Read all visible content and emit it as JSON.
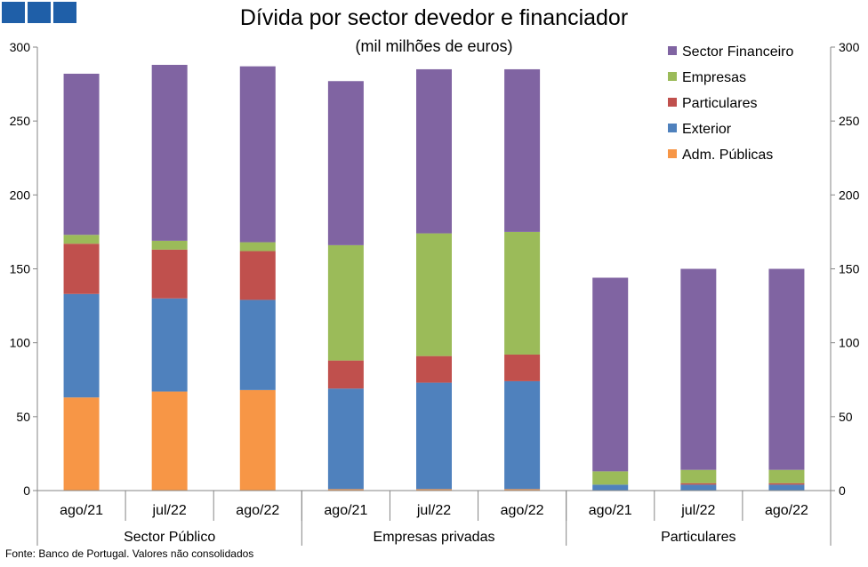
{
  "logo": {
    "icon": "bank-logo-icon",
    "color": "#1f5fa8"
  },
  "source_note": "Fonte: Banco de Portugal. Valores não consolidados",
  "chart_data": {
    "type": "bar",
    "stacked": true,
    "title": "Dívida por sector devedor e financiador",
    "subtitle": "(mil milhões de euros)",
    "xlabel": "",
    "ylabel": "",
    "ylim": [
      0,
      300
    ],
    "yticks": [
      0,
      50,
      100,
      150,
      200,
      250,
      300
    ],
    "secondary_yaxis": true,
    "grid": false,
    "legend_position": "top-right",
    "categories": [
      "ago/21",
      "jul/22",
      "ago/22",
      "ago/21",
      "jul/22",
      "ago/22",
      "ago/21",
      "jul/22",
      "ago/22"
    ],
    "groups": [
      {
        "label": "Sector Público",
        "count": 3
      },
      {
        "label": "Empresas privadas",
        "count": 3
      },
      {
        "label": "Particulares",
        "count": 3
      }
    ],
    "series": [
      {
        "name": "Adm. Públicas",
        "color": "#f79646",
        "values": [
          63,
          67,
          68,
          1,
          1,
          1,
          0,
          0,
          0
        ]
      },
      {
        "name": "Exterior",
        "color": "#4f81bd",
        "values": [
          70,
          63,
          61,
          68,
          72,
          73,
          4,
          4,
          4
        ]
      },
      {
        "name": "Particulares",
        "color": "#c0504d",
        "values": [
          34,
          33,
          33,
          19,
          18,
          18,
          0,
          1,
          1
        ]
      },
      {
        "name": "Empresas",
        "color": "#9bbb59",
        "values": [
          6,
          6,
          6,
          78,
          83,
          83,
          9,
          9,
          9
        ]
      },
      {
        "name": "Sector Financeiro",
        "color": "#8064a2",
        "values": [
          109,
          119,
          119,
          111,
          111,
          110,
          131,
          136,
          136
        ]
      }
    ]
  }
}
